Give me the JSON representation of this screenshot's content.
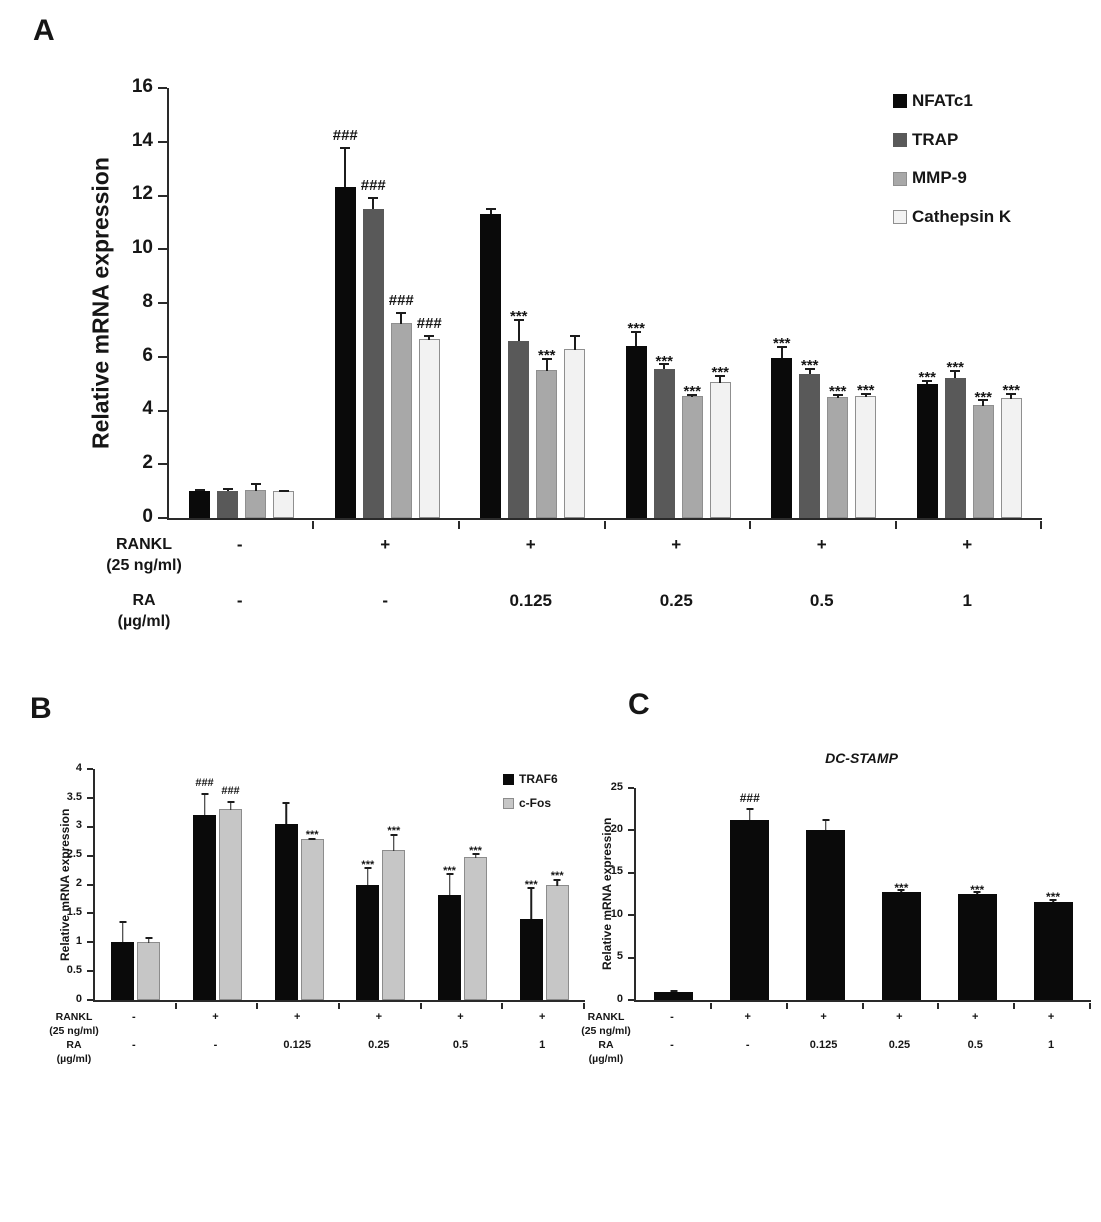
{
  "figure": {
    "background": "#ffffff"
  },
  "chart_data": [
    {
      "panel": "A",
      "type": "bar",
      "title": "",
      "ylabel": "Relative mRNA expression",
      "ylim": [
        0,
        16
      ],
      "ystep": 2,
      "grid": false,
      "legend_position": "top-right",
      "categories": [
        "RANKL- / RA-",
        "RANKL+ / RA-",
        "RANKL+ / RA 0.125",
        "RANKL+ / RA 0.25",
        "RANKL+ / RA 0.5",
        "RANKL+ / RA 1"
      ],
      "series": [
        {
          "name": "NFATc1",
          "color": "#0a0a0a",
          "border": "",
          "values": [
            1.0,
            12.3,
            11.3,
            6.4,
            5.95,
            5.0
          ],
          "errors": [
            0.07,
            1.5,
            0.25,
            0.55,
            0.45,
            0.15
          ],
          "annotations": [
            "",
            "###",
            "",
            "***",
            "***",
            "***"
          ]
        },
        {
          "name": "TRAP",
          "color": "#595959",
          "border": "",
          "values": [
            1.0,
            11.5,
            6.6,
            5.55,
            5.35,
            5.2
          ],
          "errors": [
            0.1,
            0.45,
            0.8,
            0.2,
            0.25,
            0.3
          ],
          "annotations": [
            "",
            "###",
            "***",
            "***",
            "***",
            "***"
          ]
        },
        {
          "name": "MMP-9",
          "color": "#a8a8a8",
          "border": "#8f8f8f",
          "values": [
            1.05,
            7.25,
            5.5,
            4.55,
            4.5,
            4.2
          ],
          "errors": [
            0.3,
            0.45,
            0.5,
            0.12,
            0.15,
            0.25
          ],
          "annotations": [
            "",
            "###",
            "***",
            "***",
            "***",
            "***"
          ]
        },
        {
          "name": "Cathepsin K",
          "color": "#f2f2f2",
          "border": "#8f8f8f",
          "values": [
            1.0,
            6.65,
            6.3,
            5.05,
            4.55,
            4.45
          ],
          "errors": [
            0.07,
            0.2,
            0.55,
            0.3,
            0.15,
            0.25
          ],
          "annotations": [
            "",
            "###",
            "",
            "***",
            "***",
            "***"
          ]
        }
      ],
      "x_rows": [
        {
          "label": "RANKL",
          "sublabel": "(25 ng/ml)",
          "values": [
            "-",
            "+",
            "+",
            "+",
            "+",
            "+"
          ]
        },
        {
          "label": "RA",
          "sublabel": "(µg/ml)",
          "values": [
            "-",
            "-",
            "0.125",
            "0.25",
            "0.5",
            "1"
          ]
        }
      ]
    },
    {
      "panel": "B",
      "type": "bar",
      "title": "",
      "ylabel": "Relative mRNA expression",
      "ylim": [
        0,
        4
      ],
      "ystep": 0.5,
      "grid": false,
      "legend_position": "top-right",
      "categories": [
        "RANKL- / RA-",
        "RANKL+ / RA-",
        "RANKL+ / RA 0.125",
        "RANKL+ / RA 0.25",
        "RANKL+ / RA 0.5",
        "RANKL+ / RA 1"
      ],
      "series": [
        {
          "name": "TRAF6",
          "color": "#0a0a0a",
          "border": "",
          "values": [
            1.0,
            3.2,
            3.05,
            2.0,
            1.82,
            1.4
          ],
          "errors": [
            0.36,
            0.38,
            0.38,
            0.3,
            0.38,
            0.55
          ],
          "annotations": [
            "",
            "###",
            "",
            "***",
            "***",
            "***"
          ]
        },
        {
          "name": "c-Fos",
          "color": "#c6c6c6",
          "border": "#8c8c8c",
          "values": [
            1.0,
            3.3,
            2.78,
            2.6,
            2.48,
            2.0
          ],
          "errors": [
            0.1,
            0.17,
            0.05,
            0.3,
            0.08,
            0.12
          ],
          "annotations": [
            "",
            "###",
            "***",
            "***",
            "***",
            "***"
          ]
        }
      ],
      "x_rows": [
        {
          "label": "RANKL",
          "sublabel": "(25 ng/ml)",
          "values": [
            "-",
            "+",
            "+",
            "+",
            "+",
            "+"
          ]
        },
        {
          "label": "RA",
          "sublabel": "(µg/ml)",
          "values": [
            "-",
            "-",
            "0.125",
            "0.25",
            "0.5",
            "1"
          ]
        }
      ]
    },
    {
      "panel": "C",
      "type": "bar",
      "title": "DC-STAMP",
      "ylabel": "Relative mRNA expression",
      "ylim": [
        0,
        25
      ],
      "ystep": 5,
      "grid": false,
      "legend_position": "none",
      "categories": [
        "RANKL- / RA-",
        "RANKL+ / RA-",
        "RANKL+ / RA 0.125",
        "RANKL+ / RA 0.25",
        "RANKL+ / RA 0.5",
        "RANKL+ / RA 1"
      ],
      "series": [
        {
          "name": "DC-STAMP",
          "color": "#0a0a0a",
          "border": "",
          "values": [
            1.0,
            21.2,
            20.1,
            12.7,
            12.5,
            11.6
          ],
          "errors": [
            0.15,
            1.4,
            1.2,
            0.35,
            0.3,
            0.35
          ],
          "annotations": [
            "",
            "###",
            "",
            "***",
            "***",
            "***"
          ]
        }
      ],
      "x_rows": [
        {
          "label": "RANKL",
          "sublabel": "(25 ng/ml)",
          "values": [
            "-",
            "+",
            "+",
            "+",
            "+",
            "+"
          ]
        },
        {
          "label": "RA",
          "sublabel": "(µg/ml)",
          "values": [
            "-",
            "-",
            "0.125",
            "0.25",
            "0.5",
            "1"
          ]
        }
      ]
    }
  ]
}
